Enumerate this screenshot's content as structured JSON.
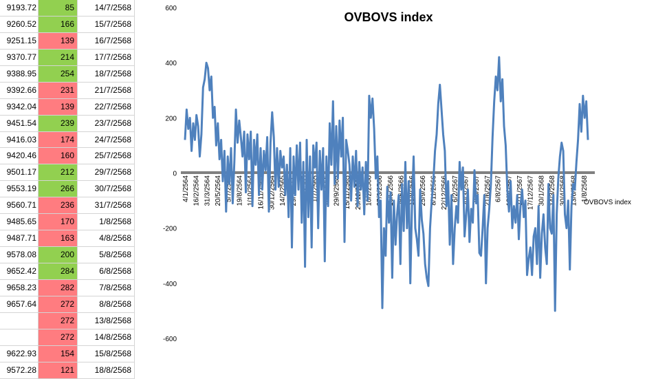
{
  "table": {
    "colors": {
      "up": "#92d050",
      "down": "#ff7c80"
    },
    "rows": [
      {
        "price": "9193.72",
        "value": "85",
        "date": "14/7/2568",
        "trend": "up"
      },
      {
        "price": "9260.52",
        "value": "166",
        "date": "15/7/2568",
        "trend": "up"
      },
      {
        "price": "9251.15",
        "value": "139",
        "date": "16/7/2568",
        "trend": "down"
      },
      {
        "price": "9370.77",
        "value": "214",
        "date": "17/7/2568",
        "trend": "up"
      },
      {
        "price": "9388.95",
        "value": "254",
        "date": "18/7/2568",
        "trend": "up"
      },
      {
        "price": "9392.66",
        "value": "231",
        "date": "21/7/2568",
        "trend": "down"
      },
      {
        "price": "9342.04",
        "value": "139",
        "date": "22/7/2568",
        "trend": "down"
      },
      {
        "price": "9451.54",
        "value": "239",
        "date": "23/7/2568",
        "trend": "up"
      },
      {
        "price": "9416.03",
        "value": "174",
        "date": "24/7/2568",
        "trend": "down"
      },
      {
        "price": "9420.46",
        "value": "160",
        "date": "25/7/2568",
        "trend": "down"
      },
      {
        "price": "9501.17",
        "value": "212",
        "date": "29/7/2568",
        "trend": "up"
      },
      {
        "price": "9553.19",
        "value": "266",
        "date": "30/7/2568",
        "trend": "up"
      },
      {
        "price": "9560.71",
        "value": "236",
        "date": "31/7/2568",
        "trend": "down"
      },
      {
        "price": "9485.65",
        "value": "170",
        "date": "1/8/2568",
        "trend": "down"
      },
      {
        "price": "9487.71",
        "value": "163",
        "date": "4/8/2568",
        "trend": "down"
      },
      {
        "price": "9578.08",
        "value": "200",
        "date": "5/8/2568",
        "trend": "up"
      },
      {
        "price": "9652.42",
        "value": "284",
        "date": "6/8/2568",
        "trend": "up"
      },
      {
        "price": "9658.23",
        "value": "282",
        "date": "7/8/2568",
        "trend": "down"
      },
      {
        "price": "9657.64",
        "value": "272",
        "date": "8/8/2568",
        "trend": "down"
      },
      {
        "price": "",
        "value": "272",
        "date": "13/8/2568",
        "trend": "down"
      },
      {
        "price": "",
        "value": "272",
        "date": "14/8/2568",
        "trend": "down"
      },
      {
        "price": "9622.93",
        "value": "154",
        "date": "15/8/2568",
        "trend": "down"
      },
      {
        "price": "9572.28",
        "value": "121",
        "date": "18/8/2568",
        "trend": "down"
      }
    ]
  },
  "chart_data": {
    "type": "line",
    "title": "OVBOVS index",
    "legend": {
      "label": "OVBOVS index",
      "position": "right"
    },
    "ylim": [
      -600,
      600
    ],
    "yticks": [
      -600,
      -400,
      -200,
      0,
      200,
      400,
      600
    ],
    "grid": false,
    "line_color": "#4f81bd",
    "zero_line_color": "#808080",
    "xtick_labels": [
      "4/1/2564",
      "16/2/2564",
      "31/3/2564",
      "20/5/2564",
      "5/7/2564",
      "19/8/2564",
      "1/10/2564",
      "16/11/2564",
      "30/12/2564",
      "14/2/2565",
      "29/3/2565",
      "19/5/2565",
      "1/7/2565",
      "18/8/2565",
      "29/9/2565",
      "15/11/2565",
      "29/12/2565",
      "10/2/2566",
      "27/3/2566",
      "16/5/2566",
      "28/6/2566",
      "11/8/2566",
      "25/9/2566",
      "8/11/2566",
      "22/12/2566",
      "6/2/2567",
      "20/3/2567",
      "8/5/2567",
      "21/6/2567",
      "6/8/2567",
      "18/9/2567",
      "1/11/2567",
      "17/12/2567",
      "30/1/2568",
      "14/3/2568",
      "30/4/2568",
      "13/6/2568",
      "1/8/2568"
    ],
    "series": [
      {
        "name": "OVBOVS index",
        "values": [
          120,
          230,
          160,
          200,
          80,
          180,
          120,
          210,
          170,
          60,
          140,
          310,
          340,
          400,
          380,
          300,
          350,
          200,
          240,
          100,
          180,
          50,
          120,
          -30,
          80,
          -140,
          60,
          -40,
          90,
          -110,
          40,
          230,
          110,
          190,
          130,
          60,
          150,
          -70,
          140,
          50,
          150,
          -120,
          120,
          30,
          140,
          -80,
          90,
          -60,
          80,
          10,
          130,
          -140,
          110,
          220,
          130,
          -60,
          90,
          -50,
          80,
          20,
          60,
          -80,
          30,
          -160,
          90,
          -270,
          60,
          -80,
          100,
          -60,
          110,
          -180,
          40,
          -340,
          120,
          -160,
          60,
          -270,
          100,
          20,
          110,
          -200,
          80,
          -60,
          90,
          -320,
          60,
          -120,
          180,
          30,
          260,
          -40,
          170,
          -20,
          190,
          60,
          200,
          -250,
          120,
          80,
          30,
          -100,
          60,
          -50,
          80,
          -120,
          40,
          -60,
          20,
          -150,
          40,
          -100,
          280,
          200,
          270,
          160,
          -20,
          60,
          -160,
          -100,
          -490,
          -200,
          -300,
          -50,
          -180,
          -70,
          -380,
          -100,
          -260,
          -150,
          -80,
          -330,
          -40,
          -210,
          40,
          -200,
          -30,
          -400,
          -120,
          60,
          -200,
          -240,
          -300,
          -60,
          -170,
          -220,
          -330,
          -380,
          -410,
          -200,
          -100,
          -30,
          80,
          140,
          250,
          320,
          230,
          140,
          80,
          -120,
          -30,
          -260,
          -80,
          -330,
          -200,
          -120,
          -180,
          40,
          -60,
          20,
          -230,
          -150,
          -60,
          -250,
          -130,
          -180,
          10,
          -110,
          -80,
          -290,
          -300,
          -200,
          -80,
          -400,
          -200,
          -130,
          -40,
          130,
          260,
          350,
          300,
          420,
          260,
          340,
          170,
          100,
          -60,
          -140,
          -30,
          -200,
          -120,
          -180,
          -80,
          -240,
          -120,
          -60,
          -160,
          -100,
          -370,
          -310,
          -270,
          -370,
          -230,
          -200,
          -330,
          -120,
          -380,
          -220,
          -150,
          -270,
          -330,
          -40,
          -200,
          -220,
          -80,
          -500,
          -150,
          -20,
          60,
          110,
          80,
          -150,
          -200,
          -100,
          -350,
          -120,
          -40,
          -60,
          40,
          120,
          250,
          150,
          280,
          200,
          260,
          120
        ]
      }
    ]
  }
}
